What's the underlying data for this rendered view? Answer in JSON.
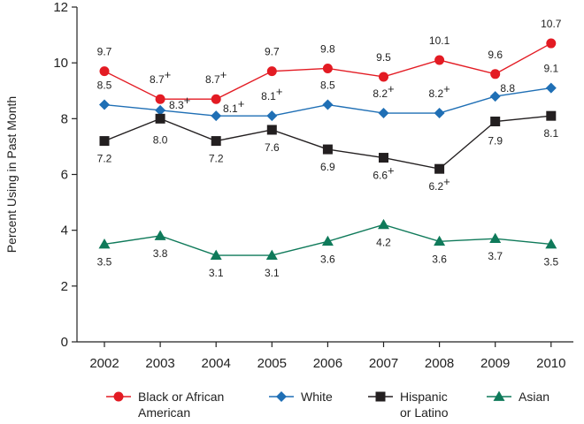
{
  "chart_data": {
    "type": "line",
    "title": "",
    "xlabel": "",
    "ylabel": "Percent Using in Past Month",
    "ylim": [
      0,
      12
    ],
    "y_ticks": [
      0,
      2,
      4,
      6,
      8,
      10,
      12
    ],
    "x": [
      "2002",
      "2003",
      "2004",
      "2005",
      "2006",
      "2007",
      "2008",
      "2009",
      "2010"
    ],
    "grid": false,
    "legend_position": "bottom",
    "significance_marker": "+",
    "series": [
      {
        "key": "black",
        "name_lines": [
          "Black or African",
          "American"
        ],
        "marker": "circle",
        "color": "#e31b23",
        "values": [
          9.7,
          8.7,
          8.7,
          9.7,
          9.8,
          9.5,
          10.1,
          9.6,
          10.7
        ],
        "labels": [
          "9.7",
          "8.7",
          "8.7",
          "9.7",
          "9.8",
          "9.5",
          "10.1",
          "9.6",
          "10.7"
        ],
        "flags": [
          false,
          true,
          true,
          false,
          false,
          false,
          false,
          false,
          false
        ]
      },
      {
        "key": "white",
        "name_lines": [
          "White"
        ],
        "marker": "diamond",
        "color": "#1f6fb5",
        "values": [
          8.5,
          8.3,
          8.1,
          8.1,
          8.5,
          8.2,
          8.2,
          8.8,
          9.1
        ],
        "labels": [
          "8.5",
          "8.3",
          "8.1",
          "8.1",
          "8.5",
          "8.2",
          "8.2",
          "8.8",
          "9.1"
        ],
        "flags": [
          false,
          true,
          true,
          true,
          false,
          true,
          true,
          false,
          false
        ]
      },
      {
        "key": "hispanic",
        "name_lines": [
          "Hispanic",
          "or Latino"
        ],
        "marker": "square",
        "color": "#231f20",
        "values": [
          7.2,
          8.0,
          7.2,
          7.6,
          6.9,
          6.6,
          6.2,
          7.9,
          8.1
        ],
        "labels": [
          "7.2",
          "8.0",
          "7.2",
          "7.6",
          "6.9",
          "6.6",
          "6.2",
          "7.9",
          "8.1"
        ],
        "flags": [
          false,
          false,
          false,
          false,
          false,
          true,
          true,
          false,
          false
        ]
      },
      {
        "key": "asian",
        "name_lines": [
          "Asian"
        ],
        "marker": "triangle",
        "color": "#0f7a5a",
        "values": [
          3.5,
          3.8,
          3.1,
          3.1,
          3.6,
          4.2,
          3.6,
          3.7,
          3.5
        ],
        "labels": [
          "3.5",
          "3.8",
          "3.1",
          "3.1",
          "3.6",
          "4.2",
          "3.6",
          "3.7",
          "3.5"
        ],
        "flags": [
          false,
          false,
          false,
          false,
          false,
          false,
          false,
          false,
          false
        ]
      }
    ]
  }
}
